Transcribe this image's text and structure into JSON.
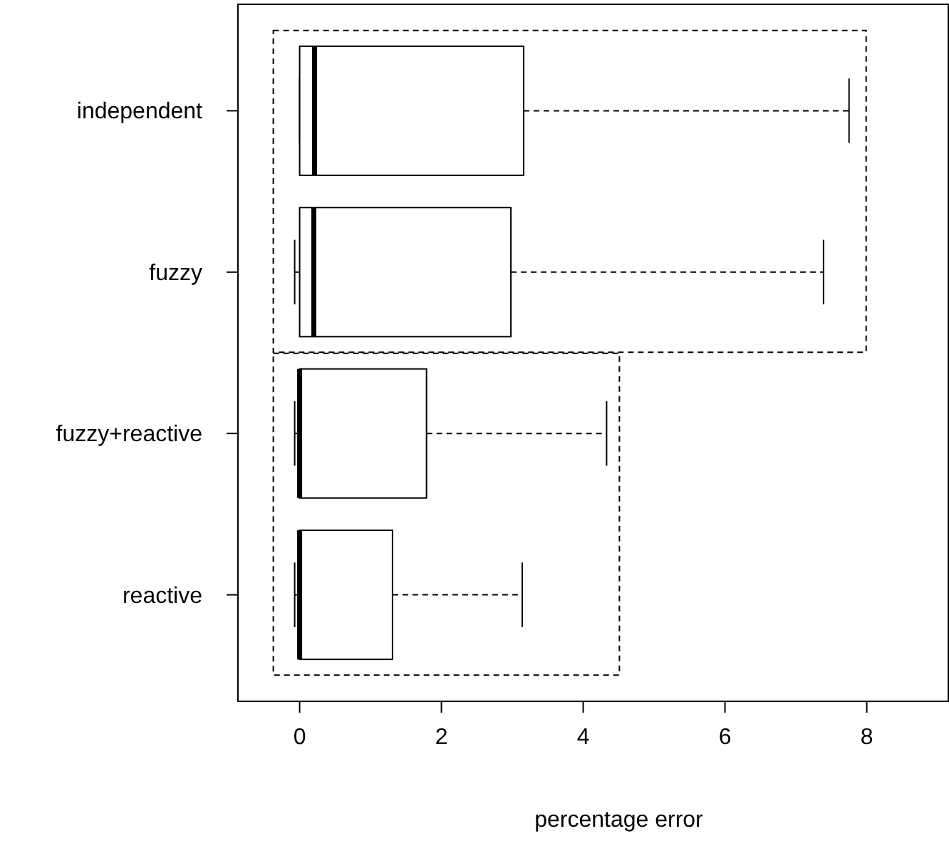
{
  "chart_data": {
    "type": "box",
    "orientation": "horizontal",
    "xlabel": "percentage error",
    "categories": [
      "independent",
      "fuzzy",
      "fuzzy+reactive",
      "reactive"
    ],
    "boxes": [
      {
        "low": 0.0,
        "q1": 0.0,
        "median": 0.21,
        "q3": 3.16,
        "high": 7.75
      },
      {
        "low": -0.07,
        "q1": 0.0,
        "median": 0.2,
        "q3": 2.98,
        "high": 7.39
      },
      {
        "low": -0.07,
        "q1": 0.0,
        "median": 0.0,
        "q3": 1.79,
        "high": 4.33
      },
      {
        "low": -0.07,
        "q1": 0.0,
        "median": 0.0,
        "q3": 1.31,
        "high": 3.14
      }
    ],
    "xlim": [
      -0.87,
      9.15
    ],
    "xticks": [
      0,
      2,
      4,
      6,
      8
    ],
    "grid": false
  }
}
